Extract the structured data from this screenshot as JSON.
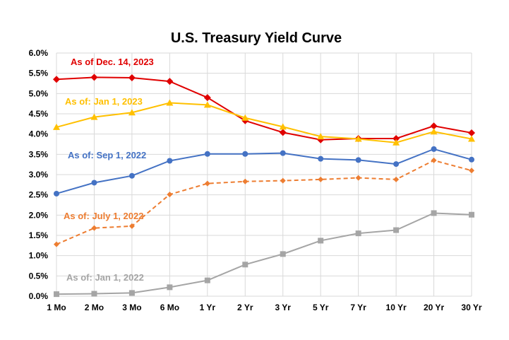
{
  "chart_data": {
    "type": "line",
    "title": "U.S. Treasury Yield Curve",
    "xlabel": "",
    "ylabel": "",
    "categories": [
      "1 Mo",
      "2 Mo",
      "3 Mo",
      "6 Mo",
      "1 Yr",
      "2 Yr",
      "3 Yr",
      "5 Yr",
      "7 Yr",
      "10 Yr",
      "20 Yr",
      "30 Yr"
    ],
    "ylim": [
      0,
      6
    ],
    "yticks": [
      "0.0%",
      "0.5%",
      "1.0%",
      "1.5%",
      "2.0%",
      "2.5%",
      "3.0%",
      "3.5%",
      "4.0%",
      "4.5%",
      "5.0%",
      "5.5%",
      "6.0%"
    ],
    "grid": "vertical and horizontal",
    "legend": "labels placed next to series lines",
    "series": [
      {
        "name": "As of Dec. 14, 2023",
        "color": "#e00000",
        "marker": "diamond",
        "dash": false,
        "values": [
          5.35,
          5.4,
          5.39,
          5.3,
          4.9,
          4.33,
          4.04,
          3.86,
          3.89,
          3.89,
          4.2,
          4.03
        ]
      },
      {
        "name": "As of: Jan 1, 2023",
        "color": "#ffc000",
        "marker": "triangle",
        "dash": false,
        "values": [
          4.17,
          4.42,
          4.53,
          4.77,
          4.72,
          4.4,
          4.18,
          3.94,
          3.88,
          3.79,
          4.06,
          3.88
        ]
      },
      {
        "name": "As of: Sep 1, 2022",
        "color": "#4472c4",
        "marker": "circle",
        "dash": false,
        "values": [
          2.53,
          2.8,
          2.97,
          3.34,
          3.51,
          3.51,
          3.53,
          3.39,
          3.36,
          3.26,
          3.63,
          3.37
        ]
      },
      {
        "name": "As of: July 1, 2022",
        "color": "#ed7d31",
        "marker": "diamond",
        "dash": true,
        "values": [
          1.28,
          1.68,
          1.73,
          2.51,
          2.78,
          2.83,
          2.85,
          2.88,
          2.92,
          2.88,
          3.35,
          3.1
        ]
      },
      {
        "name": "As of: Jan 1, 2022",
        "color": "#a5a5a5",
        "marker": "square",
        "dash": false,
        "values": [
          0.05,
          0.06,
          0.08,
          0.22,
          0.39,
          0.78,
          1.04,
          1.37,
          1.55,
          1.63,
          2.05,
          2.01
        ]
      }
    ]
  }
}
